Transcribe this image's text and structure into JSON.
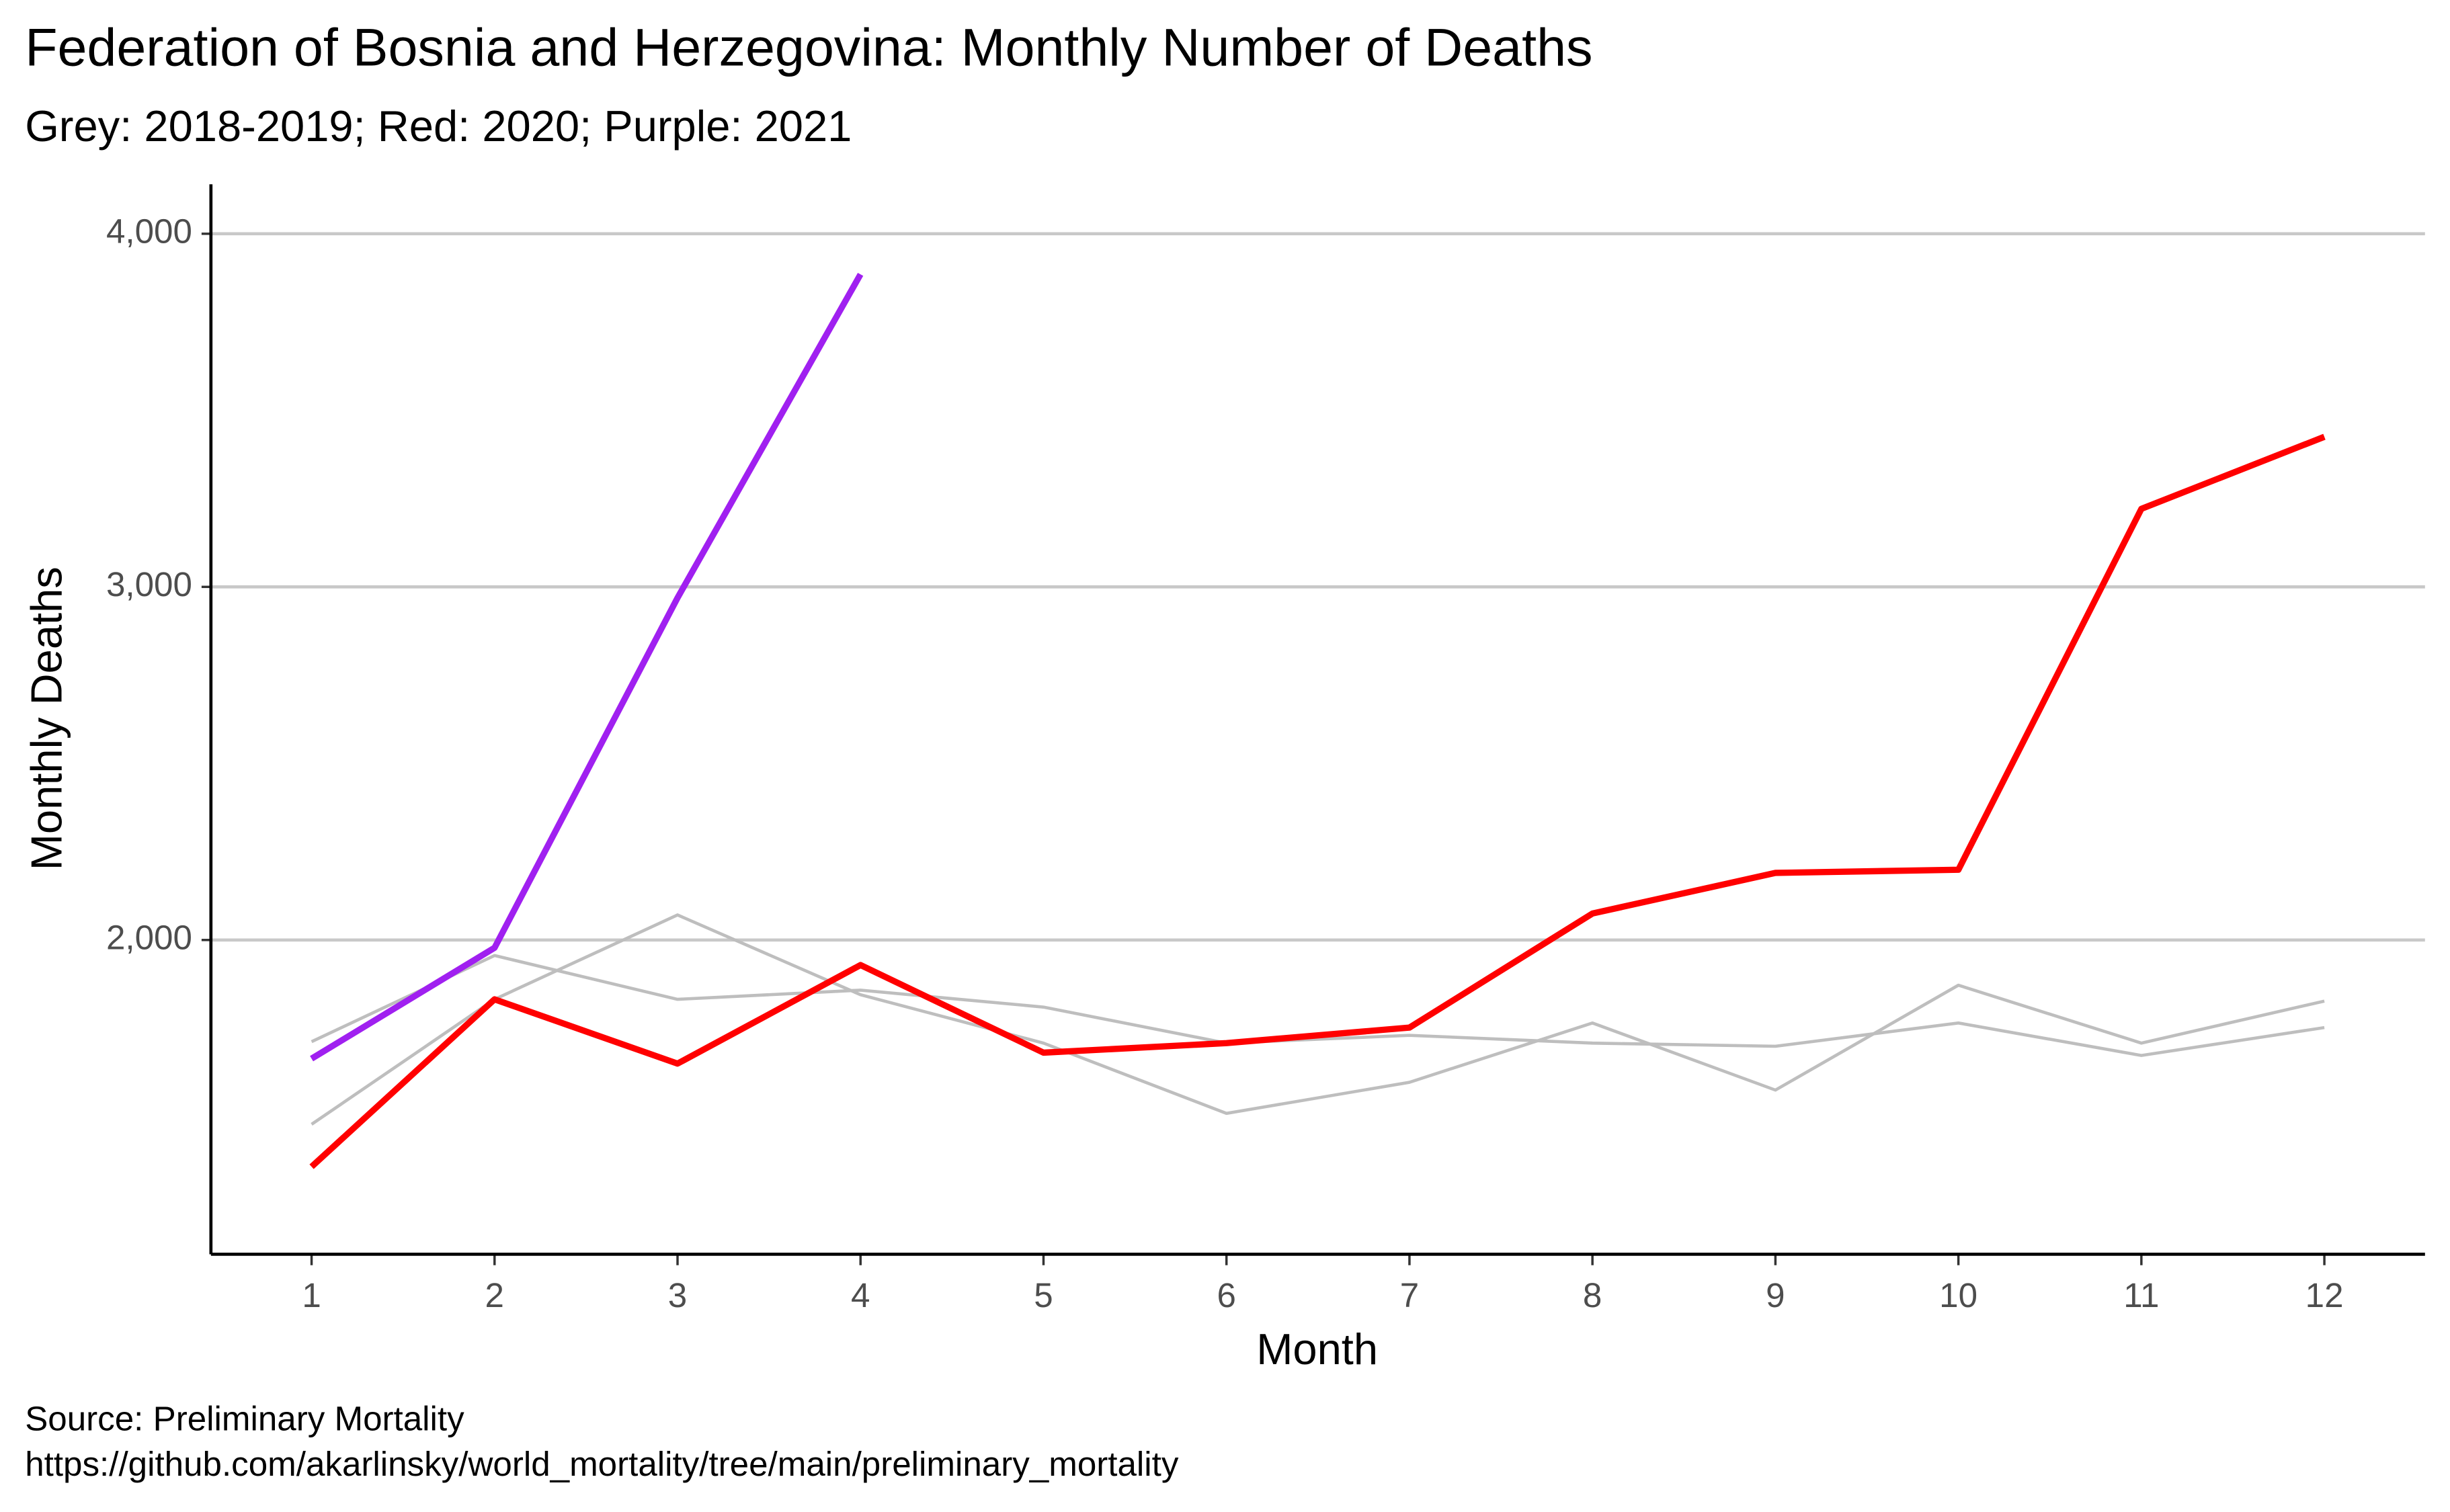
{
  "chart_data": {
    "type": "line",
    "title": "Federation of Bosnia and Herzegovina: Monthly Number of Deaths",
    "subtitle": "Grey: 2018-2019; Red: 2020; Purple: 2021",
    "x_label": "Month",
    "y_label": "Monthly Deaths",
    "caption": [
      "Source: Preliminary Mortality",
      "https://github.com/akarlinsky/world_mortality/tree/main/preliminary_mortality"
    ],
    "x": [
      1,
      2,
      3,
      4,
      5,
      6,
      7,
      8,
      9,
      10,
      11,
      12
    ],
    "xlim": [
      0.45,
      12.55
    ],
    "xticks": [
      1,
      2,
      3,
      4,
      5,
      6,
      7,
      8,
      9,
      10,
      11,
      12
    ],
    "ylim": [
      1110,
      4140
    ],
    "yticks": [
      {
        "value": 2000,
        "label": "2,000"
      },
      {
        "value": 3000,
        "label": "3,000"
      },
      {
        "value": 4000,
        "label": "4,000"
      }
    ],
    "grid": true,
    "series": [
      {
        "color": "#bebebe",
        "width": 1,
        "values": [
          1478,
          1832,
          2071,
          1845,
          1708,
          1509,
          1597,
          1765,
          1575,
          1872,
          1708,
          1827
        ]
      },
      {
        "color": "#bebebe",
        "width": 1,
        "values": [
          1712,
          1956,
          1832,
          1858,
          1810,
          1708,
          1730,
          1708,
          1699,
          1765,
          1673,
          1752
        ]
      },
      {
        "color": "#ff0000",
        "width": 2,
        "values": [
          1358,
          1832,
          1650,
          1929,
          1681,
          1708,
          1752,
          2075,
          2190,
          2199,
          3221,
          3425
        ]
      },
      {
        "color": "#a020f0",
        "width": 2,
        "values": [
          1664,
          1978,
          2969,
          3885,
          null,
          null,
          null,
          null,
          null,
          null,
          null,
          null
        ]
      }
    ]
  }
}
